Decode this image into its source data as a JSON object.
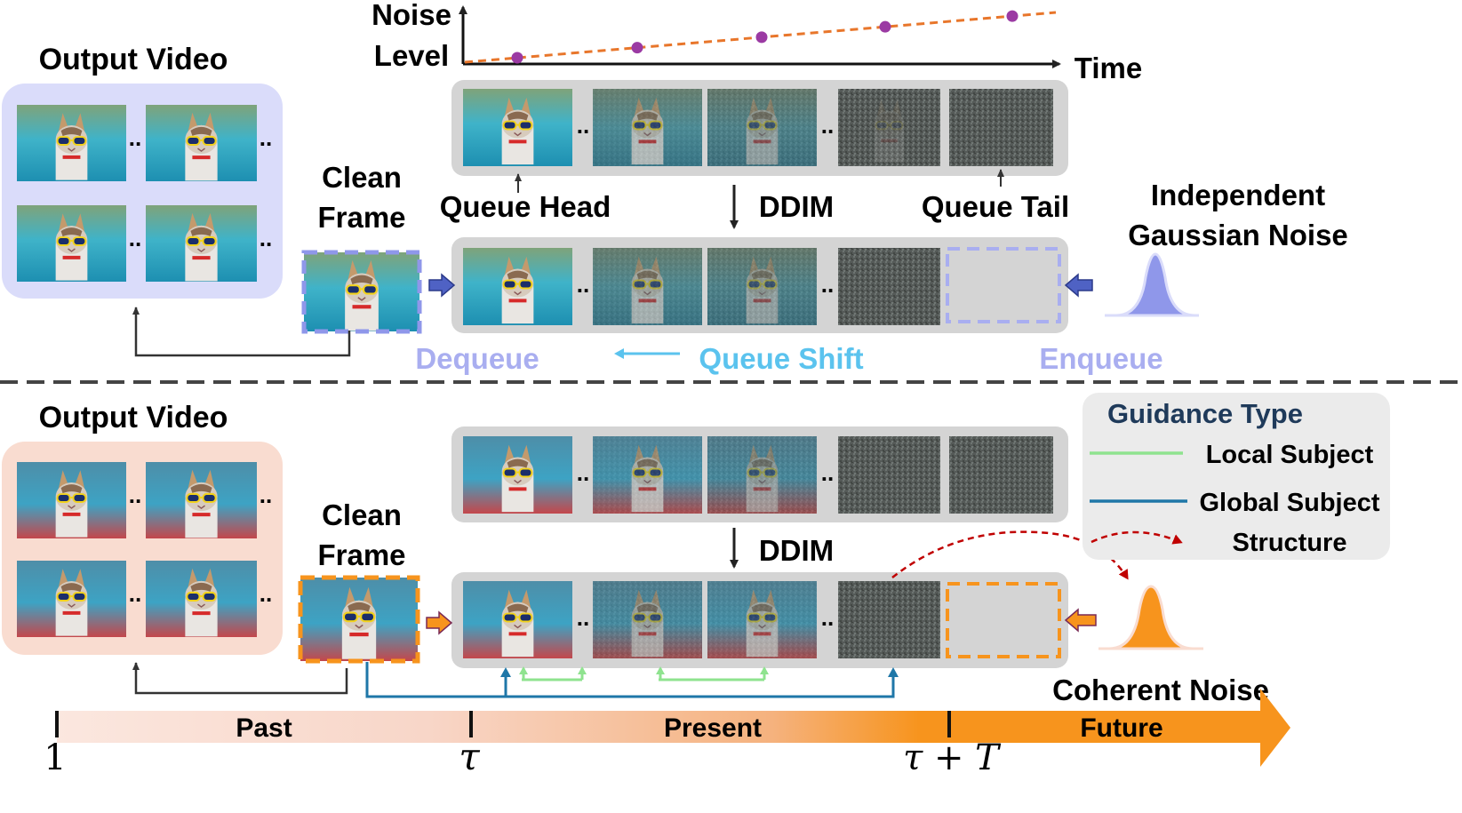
{
  "colors": {
    "tray": "#d4d4d4",
    "blue_accent": "#8f97ea",
    "blue_panel": "#dadcfa",
    "orange_accent": "#f7941d",
    "orange_panel": "#f9dcd0",
    "light_blue_text": "#a9aef0",
    "queue_shift_blue": "#5bc3ee",
    "noise_dots": "#9b3aa3",
    "noise_line": "#e8762b",
    "local_subject": "#8fe38f",
    "global_subject": "#1f77a8",
    "structure": "#c00000",
    "legend_title": "#1f3a5a",
    "legend_bg": "#ebebeb"
  },
  "top": {
    "noise_axis_label_1": "Noise",
    "noise_axis_label_2": "Level",
    "time_label": "Time",
    "noise_points": [
      1,
      2,
      3,
      4,
      5
    ],
    "output_video_label": "Output Video",
    "clean_frame_line1": "Clean",
    "clean_frame_line2": "Frame",
    "queue_head_label": "Queue Head",
    "ddim_label": "DDIM",
    "queue_tail_label": "Queue Tail",
    "indep_noise_line1": "Independent",
    "indep_noise_line2": "Gaussian Noise",
    "dequeue_label": "Dequeue",
    "queue_shift_label": "Queue Shift",
    "enqueue_label": "Enqueue",
    "ellipsis": ".."
  },
  "bottom": {
    "output_video_label": "Output Video",
    "clean_frame_line1": "Clean",
    "clean_frame_line2": "Frame",
    "ddim_label": "DDIM",
    "legend_title": "Guidance Type",
    "legend_local": "Local Subject",
    "legend_global": "Global Subject",
    "legend_structure": "Structure",
    "coherent_noise_label": "Coherent Noise"
  },
  "timeline": {
    "past": "Past",
    "present": "Present",
    "future": "Future",
    "tick_1": "1",
    "tick_tau": "τ",
    "tick_tau_T": "τ + T"
  }
}
